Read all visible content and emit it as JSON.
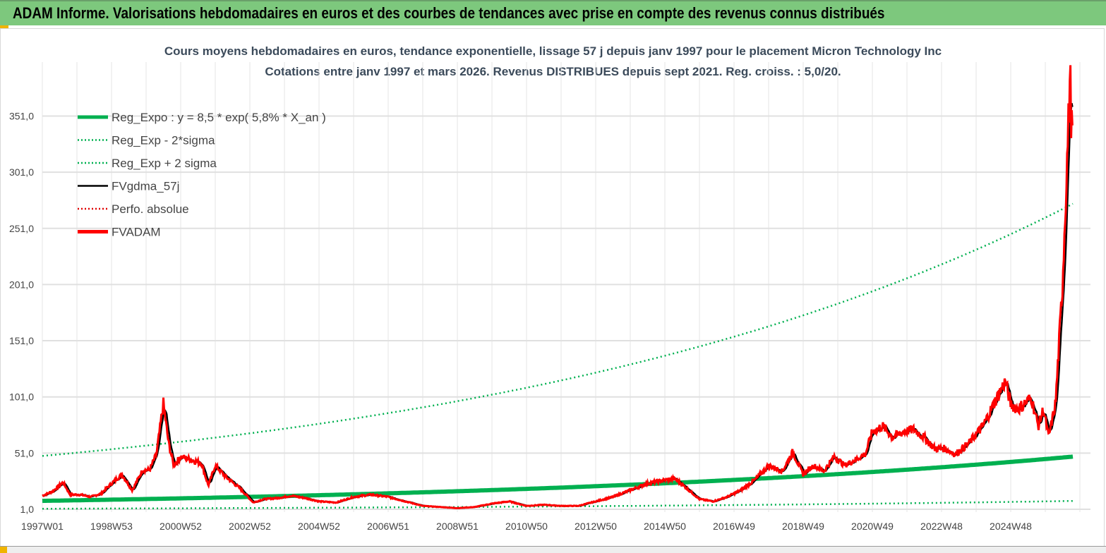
{
  "header": {
    "title": "ADAM Informe. Valorisations hebdomadaires en euros et des courbes de tendances avec prise en compte des revenus connus distribués"
  },
  "chart_data": {
    "type": "line",
    "title": "Cours moyens hebdomadaires en euros, tendance exponentielle, lissage 57 j depuis janv 1997 pour le placement Micron Technology Inc",
    "subtitle": "Cotations entre janv 1997 et mars 2026. Revenus DISTRIBUES depuis sept 2021. Reg. croiss. : 5,0/20.",
    "xlim": [
      1997.0,
      2026.8
    ],
    "ylim": [
      1,
      399
    ],
    "yticks": [
      1,
      51,
      101,
      151,
      201,
      251,
      301,
      351
    ],
    "ytick_labels": [
      "1,0",
      "51,0",
      "101,0",
      "151,0",
      "201,0",
      "251,0",
      "301,0",
      "351,0"
    ],
    "xtick_labels": [
      "1997W01",
      "1998W53",
      "2000W52",
      "2002W52",
      "2004W52",
      "2006W51",
      "2008W51",
      "2010W50",
      "2012W50",
      "2014W50",
      "2016W49",
      "2018W49",
      "2020W49",
      "2022W48",
      "2024W48"
    ],
    "grid": true,
    "legend_position": "top-left",
    "regression": {
      "a": 8.5,
      "rate": 0.058,
      "band_factor": 5.7
    },
    "legend": [
      {
        "label": "Reg_Expo : y = 8,5 * exp( 5,8% *  X_an )",
        "color": "#00b050",
        "style": "thick"
      },
      {
        "label": "Reg_Exp - 2*sigma",
        "color": "#00b050",
        "style": "dotted"
      },
      {
        "label": "Reg_Exp + 2 sigma",
        "color": "#00b050",
        "style": "dotted"
      },
      {
        "label": "FVgdma_57j",
        "color": "#000000",
        "style": "solid"
      },
      {
        "label": "Perfo. absolue",
        "color": "#e00000",
        "style": "dotted"
      },
      {
        "label": "FVADAM",
        "color": "#ff0000",
        "style": "thick"
      }
    ],
    "fvadam": {
      "t": [
        1997.0,
        1997.3,
        1997.6,
        1997.8,
        1998.1,
        1998.4,
        1998.7,
        1999.0,
        1999.3,
        1999.6,
        1999.9,
        2000.1,
        2000.3,
        2000.5,
        2000.65,
        2000.8,
        2001.0,
        2001.3,
        2001.6,
        2001.8,
        2002.0,
        2002.3,
        2002.7,
        2003.1,
        2003.4,
        2003.8,
        2004.2,
        2004.6,
        2005.0,
        2005.5,
        2006.0,
        2006.5,
        2007.0,
        2007.5,
        2008.0,
        2008.5,
        2009.0,
        2009.5,
        2010.0,
        2010.5,
        2011.0,
        2011.5,
        2012.0,
        2012.5,
        2013.0,
        2013.5,
        2014.0,
        2014.5,
        2015.0,
        2015.3,
        2015.7,
        2016.0,
        2016.4,
        2016.8,
        2017.2,
        2017.6,
        2018.0,
        2018.4,
        2018.7,
        2019.0,
        2019.3,
        2019.6,
        2019.9,
        2020.2,
        2020.5,
        2020.8,
        2021.0,
        2021.3,
        2021.6,
        2021.9,
        2022.2,
        2022.5,
        2022.8,
        2023.1,
        2023.4,
        2023.8,
        2024.2,
        2024.6,
        2024.85,
        2025.0,
        2025.2,
        2025.4,
        2025.6,
        2025.8,
        2025.95,
        2026.1,
        2026.3,
        2026.5,
        2026.62,
        2026.68,
        2026.72,
        2026.76,
        2026.8
      ],
      "v": [
        13,
        17,
        25,
        14,
        14,
        12,
        15,
        24,
        32,
        18,
        36,
        36,
        50,
        95,
        60,
        40,
        48,
        45,
        42,
        22,
        40,
        30,
        20,
        7,
        10,
        11,
        13,
        11,
        8,
        7,
        12,
        14,
        12,
        8,
        4,
        3,
        2,
        3,
        6,
        8,
        4,
        5,
        4,
        4,
        8,
        12,
        18,
        24,
        27,
        28,
        18,
        10,
        8,
        12,
        18,
        27,
        40,
        35,
        52,
        32,
        40,
        35,
        48,
        40,
        45,
        50,
        70,
        75,
        65,
        70,
        72,
        65,
        55,
        55,
        50,
        60,
        75,
        100,
        115,
        95,
        90,
        95,
        100,
        75,
        90,
        65,
        95,
        200,
        300,
        350,
        390,
        340,
        335
      ]
    }
  }
}
